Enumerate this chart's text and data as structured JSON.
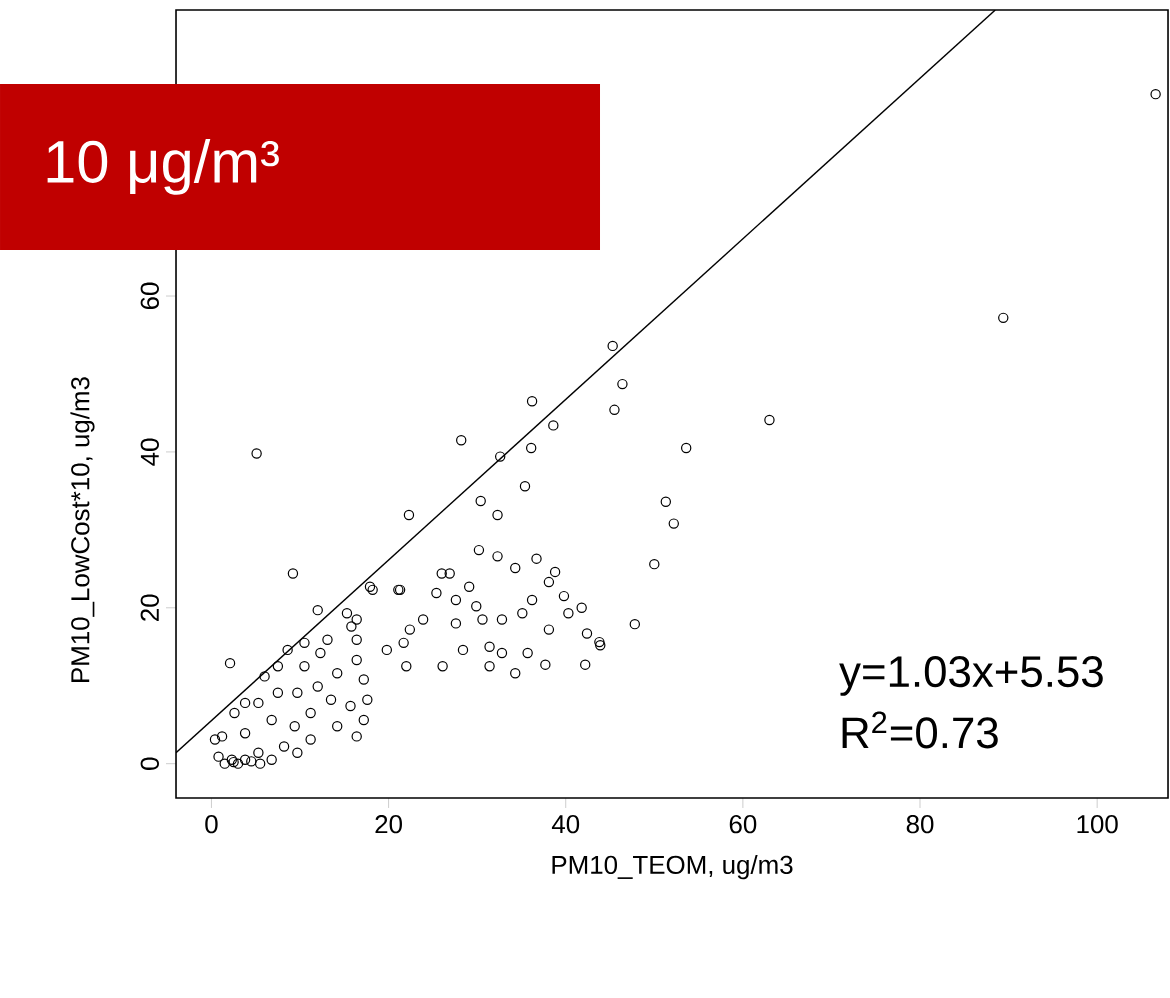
{
  "chart_data": {
    "type": "scatter",
    "xlabel": "PM10_TEOM, ug/m3",
    "ylabel": "PM10_LowCost*10, ug/m3",
    "annotations": [
      "10 μg/m³",
      "y=1.03x+5.53",
      "R$^{2}$=0.73"
    ],
    "xlim": [
      -4,
      108
    ],
    "ylim": [
      -4.4,
      96.7
    ],
    "xticks": [
      0,
      20,
      40,
      60,
      80,
      100
    ],
    "yticks": [
      0,
      20,
      40,
      60
    ],
    "marker": "circle",
    "series": [
      {
        "color": "#000000",
        "x": [
          106.6,
          89.4,
          63.0,
          53.6,
          51.3,
          52.2,
          50.0,
          47.8,
          43.8,
          45.3,
          46.4,
          45.5,
          36.2,
          38.6,
          28.2,
          32.6,
          36.1,
          35.4,
          30.4,
          32.3,
          22.3,
          30.2,
          32.3,
          34.3,
          36.7,
          38.8,
          38.1,
          39.8,
          41.8,
          42.4,
          43.9,
          42.2,
          38.1,
          37.7,
          35.7,
          34.3,
          32.8,
          31.4,
          29.9,
          29.1,
          27.6,
          26.9,
          26.0,
          25.4,
          23.9,
          22.4,
          21.7,
          19.8,
          22.0,
          26.1,
          28.4,
          31.4,
          27.6,
          30.6,
          32.8,
          35.1,
          36.2,
          40.3,
          17.9,
          21.3,
          16.4,
          16.4,
          16.4,
          9.2,
          2.1,
          12.0,
          15.3,
          18.2,
          21.1,
          15.8,
          10.5,
          13.1,
          8.6,
          7.5,
          10.5,
          5.3,
          2.6,
          3.8,
          1.2,
          0.8,
          2.3,
          3.8,
          5.3,
          6.8,
          8.2,
          6.8,
          9.4,
          11.2,
          9.7,
          12.0,
          13.5,
          14.2,
          11.2,
          9.7,
          15.7,
          17.2,
          17.2,
          14.2,
          17.6,
          16.4,
          12.3,
          6.0,
          7.5,
          3.8,
          0.4,
          5.1,
          1.5,
          2.5,
          3.0,
          4.5,
          5.5
        ],
        "values": [
          85.9,
          57.2,
          44.1,
          40.5,
          33.6,
          30.8,
          25.6,
          17.9,
          15.6,
          53.6,
          48.7,
          45.4,
          46.5,
          43.4,
          41.5,
          39.4,
          40.5,
          35.6,
          33.7,
          31.9,
          31.9,
          27.4,
          26.6,
          25.1,
          26.3,
          24.6,
          23.3,
          21.5,
          20.0,
          16.7,
          15.2,
          12.7,
          17.2,
          12.7,
          14.2,
          11.6,
          14.2,
          15.0,
          20.2,
          22.7,
          21.0,
          24.4,
          24.4,
          21.9,
          18.5,
          17.2,
          15.5,
          14.6,
          12.5,
          12.5,
          14.6,
          12.5,
          18.0,
          18.5,
          18.5,
          19.3,
          21.0,
          19.3,
          22.7,
          22.3,
          18.5,
          15.9,
          13.3,
          24.4,
          12.9,
          19.7,
          19.3,
          22.3,
          22.3,
          17.6,
          15.5,
          15.9,
          14.6,
          12.5,
          12.5,
          7.8,
          6.5,
          3.9,
          3.5,
          0.9,
          0.5,
          0.5,
          1.4,
          0.5,
          2.2,
          5.6,
          4.8,
          6.5,
          9.1,
          9.9,
          8.2,
          4.8,
          3.1,
          1.4,
          7.4,
          10.8,
          5.6,
          11.6,
          8.2,
          3.5,
          14.2,
          11.2,
          9.1,
          7.8,
          3.1,
          39.8,
          0.0,
          0.2,
          0.0,
          0.3,
          0.0
        ]
      },
      {
        "type": "line",
        "color": "#000000",
        "marker": "none",
        "x": [
          -4,
          88.5
        ],
        "values": [
          1.4,
          96.7
        ]
      }
    ]
  }
}
